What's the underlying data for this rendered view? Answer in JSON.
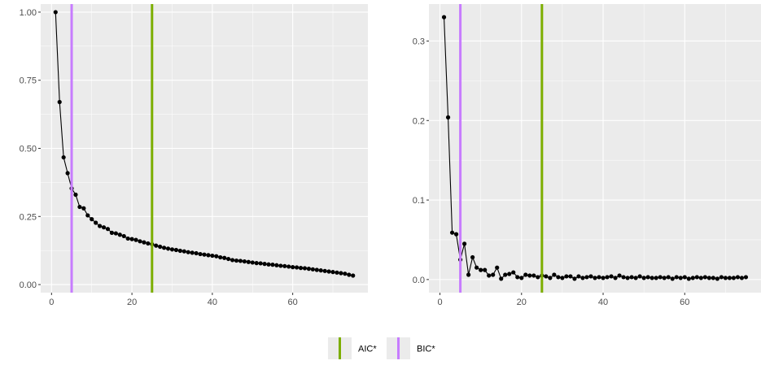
{
  "chart_data": [
    {
      "type": "line",
      "title": "",
      "xlabel": "",
      "ylabel": "",
      "xlim": [
        -2.7,
        78.7
      ],
      "ylim": [
        -0.0296,
        1.0296
      ],
      "x_ticks": [
        0,
        20,
        40,
        60
      ],
      "x_tick_labels": [
        "0",
        "20",
        "40",
        "60"
      ],
      "y_ticks": [
        0.0,
        0.25,
        0.5,
        0.75,
        1.0
      ],
      "y_tick_labels": [
        "0.00",
        "0.25",
        "0.50",
        "0.75",
        "1.00"
      ],
      "grid": true,
      "vlines": [
        {
          "name": "AIC*",
          "x": 25,
          "color": "#7cae00"
        },
        {
          "name": "BIC*",
          "x": 5,
          "color": "#c77cff"
        }
      ],
      "series": [
        {
          "color": "#000000",
          "x": [
            1,
            2,
            3,
            4,
            5,
            6,
            7,
            8,
            9,
            10,
            11,
            12,
            13,
            14,
            15,
            16,
            17,
            18,
            19,
            20,
            21,
            22,
            23,
            24,
            25,
            26,
            27,
            28,
            29,
            30,
            31,
            32,
            33,
            34,
            35,
            36,
            37,
            38,
            39,
            40,
            41,
            42,
            43,
            44,
            45,
            46,
            47,
            48,
            49,
            50,
            51,
            52,
            53,
            54,
            55,
            56,
            57,
            58,
            59,
            60,
            61,
            62,
            63,
            64,
            65,
            66,
            67,
            68,
            69,
            70,
            71,
            72,
            73,
            74,
            75
          ],
          "values": [
            1.0,
            0.67,
            0.467,
            0.409,
            0.353,
            0.33,
            0.285,
            0.28,
            0.254,
            0.24,
            0.227,
            0.215,
            0.21,
            0.204,
            0.19,
            0.188,
            0.183,
            0.178,
            0.169,
            0.167,
            0.164,
            0.159,
            0.155,
            0.151,
            0.148,
            0.143,
            0.139,
            0.135,
            0.132,
            0.129,
            0.127,
            0.124,
            0.122,
            0.119,
            0.117,
            0.115,
            0.112,
            0.11,
            0.108,
            0.106,
            0.104,
            0.1,
            0.098,
            0.094,
            0.09,
            0.088,
            0.087,
            0.085,
            0.083,
            0.081,
            0.079,
            0.078,
            0.076,
            0.074,
            0.073,
            0.071,
            0.069,
            0.068,
            0.066,
            0.064,
            0.063,
            0.061,
            0.06,
            0.058,
            0.056,
            0.054,
            0.052,
            0.05,
            0.048,
            0.046,
            0.044,
            0.042,
            0.04,
            0.036,
            0.033
          ]
        }
      ]
    },
    {
      "type": "line",
      "title": "",
      "xlabel": "",
      "ylabel": "",
      "xlim": [
        -2.7,
        78.7
      ],
      "ylim": [
        -0.0165,
        0.3465
      ],
      "x_ticks": [
        0,
        20,
        40,
        60
      ],
      "x_tick_labels": [
        "0",
        "20",
        "40",
        "60"
      ],
      "y_ticks": [
        0.0,
        0.1,
        0.2,
        0.3
      ],
      "y_tick_labels": [
        "0.0",
        "0.1",
        "0.2",
        "0.3"
      ],
      "grid": true,
      "vlines": [
        {
          "name": "AIC*",
          "x": 25,
          "color": "#7cae00"
        },
        {
          "name": "BIC*",
          "x": 5,
          "color": "#c77cff"
        }
      ],
      "series": [
        {
          "color": "#000000",
          "x": [
            1,
            2,
            3,
            4,
            5,
            6,
            7,
            8,
            9,
            10,
            11,
            12,
            13,
            14,
            15,
            16,
            17,
            18,
            19,
            20,
            21,
            22,
            23,
            24,
            25,
            26,
            27,
            28,
            29,
            30,
            31,
            32,
            33,
            34,
            35,
            36,
            37,
            38,
            39,
            40,
            41,
            42,
            43,
            44,
            45,
            46,
            47,
            48,
            49,
            50,
            51,
            52,
            53,
            54,
            55,
            56,
            57,
            58,
            59,
            60,
            61,
            62,
            63,
            64,
            65,
            66,
            67,
            68,
            69,
            70,
            71,
            72,
            73,
            74,
            75
          ],
          "values": [
            0.33,
            0.204,
            0.059,
            0.057,
            0.025,
            0.045,
            0.006,
            0.028,
            0.015,
            0.012,
            0.012,
            0.005,
            0.006,
            0.015,
            0.001,
            0.006,
            0.007,
            0.009,
            0.003,
            0.002,
            0.006,
            0.005,
            0.005,
            0.003,
            0.005,
            0.004,
            0.002,
            0.006,
            0.003,
            0.002,
            0.004,
            0.004,
            0.001,
            0.004,
            0.002,
            0.003,
            0.004,
            0.002,
            0.003,
            0.002,
            0.003,
            0.004,
            0.002,
            0.005,
            0.003,
            0.002,
            0.003,
            0.002,
            0.004,
            0.002,
            0.003,
            0.002,
            0.002,
            0.003,
            0.002,
            0.003,
            0.001,
            0.003,
            0.002,
            0.003,
            0.001,
            0.002,
            0.003,
            0.002,
            0.003,
            0.002,
            0.002,
            0.001,
            0.003,
            0.002,
            0.002,
            0.002,
            0.003,
            0.002,
            0.003
          ]
        }
      ]
    }
  ],
  "legend": {
    "position": "bottom",
    "items": [
      {
        "label": "AIC*",
        "color": "#7cae00"
      },
      {
        "label": "BIC*",
        "color": "#c77cff"
      }
    ]
  }
}
